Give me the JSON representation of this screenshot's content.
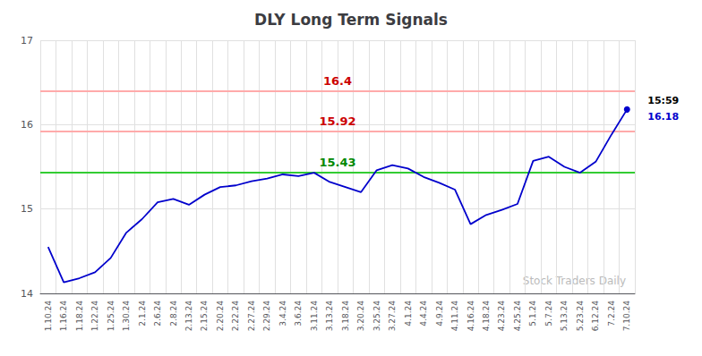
{
  "chart_data": {
    "type": "line",
    "title": "DLY Long Term Signals",
    "categories": [
      "1.10.24",
      "1.16.24",
      "1.18.24",
      "1.22.24",
      "1.25.24",
      "1.30.24",
      "2.1.24",
      "2.6.24",
      "2.8.24",
      "2.13.24",
      "2.15.24",
      "2.20.24",
      "2.22.24",
      "2.27.24",
      "2.29.24",
      "3.4.24",
      "3.6.24",
      "3.11.24",
      "3.13.24",
      "3.18.24",
      "3.20.24",
      "3.25.24",
      "3.27.24",
      "4.1.24",
      "4.4.24",
      "4.9.24",
      "4.11.24",
      "4.16.24",
      "4.18.24",
      "4.23.24",
      "4.25.24",
      "5.1.24",
      "5.7.24",
      "5.13.24",
      "5.23.24",
      "6.12.24",
      "7.2.24",
      "7.10.24"
    ],
    "values": [
      14.55,
      14.13,
      14.18,
      14.25,
      14.42,
      14.72,
      14.88,
      15.08,
      15.12,
      15.05,
      15.17,
      15.26,
      15.28,
      15.33,
      15.36,
      15.41,
      15.39,
      15.43,
      15.32,
      15.26,
      15.2,
      15.46,
      15.52,
      15.48,
      15.38,
      15.31,
      15.23,
      14.82,
      14.93,
      14.99,
      15.06,
      15.57,
      15.62,
      15.5,
      15.43,
      15.56,
      15.88,
      16.18
    ],
    "color": "#0000cc",
    "ylim": [
      14,
      17
    ],
    "yticks": [
      14,
      15,
      16,
      17
    ],
    "grid": true,
    "reference_lines": [
      {
        "value": 15.43,
        "label": "15.43",
        "color": "#33cc33",
        "label_color": "#008800"
      },
      {
        "value": 15.92,
        "label": "15.92",
        "color": "#ffaaaa",
        "label_color": "#cc0000"
      },
      {
        "value": 16.4,
        "label": "16.4",
        "color": "#ffaaaa",
        "label_color": "#cc0000"
      }
    ],
    "last_point_labels": [
      {
        "text": "15:59",
        "color": "#000000"
      },
      {
        "text": "16.18",
        "color": "#0000cc"
      }
    ],
    "watermark": {
      "text": "Stock Traders Daily",
      "color": "#bbbbbb"
    }
  }
}
